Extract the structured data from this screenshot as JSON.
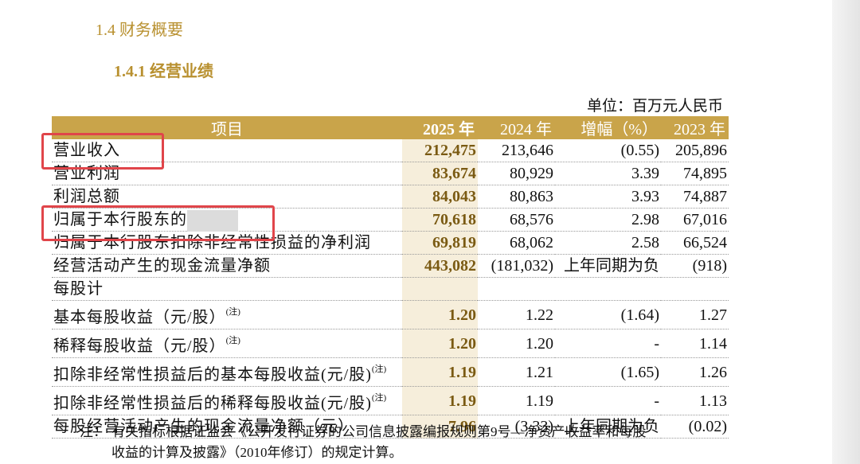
{
  "section": {
    "title": "1.4 财务概要",
    "subtitle": "1.4.1 经营业绩"
  },
  "unit": "单位：百万元人民币",
  "table": {
    "header": [
      "项目",
      "2025 年",
      "2024 年",
      "增幅（%）",
      "2023 年"
    ],
    "rows": [
      {
        "item": "营业收入",
        "values": [
          "212,475",
          "213,646",
          "(0.55)",
          "205,896"
        ]
      },
      {
        "item": "营业利润",
        "values": [
          "83,674",
          "80,929",
          "3.39",
          "74,895"
        ]
      },
      {
        "item": "利润总额",
        "values": [
          "84,043",
          "80,863",
          "3.93",
          "74,887"
        ]
      },
      {
        "item": "归属于本行股东的净利润",
        "values": [
          "70,618",
          "68,576",
          "2.98",
          "67,016"
        ]
      },
      {
        "item": "归属于本行股东扣除非经常性损益的净利润",
        "values": [
          "69,819",
          "68,062",
          "2.58",
          "66,524"
        ]
      },
      {
        "item": "经营活动产生的现金流量净额",
        "values": [
          "443,082",
          "(181,032)",
          "上年同期为负",
          "(918)"
        ]
      },
      {
        "item": "每股计",
        "values": []
      },
      {
        "item": "基本每股收益（元/股）",
        "mark": "(注)",
        "values": [
          "1.20",
          "1.22",
          "(1.64)",
          "1.27"
        ]
      },
      {
        "item": "稀释每股收益（元/股）",
        "mark": "(注)",
        "values": [
          "1.20",
          "1.20",
          "-",
          "1.14"
        ]
      },
      {
        "item": "扣除非经常性损益后的基本每股收益(元/股)",
        "mark": "(注)",
        "values": [
          "1.19",
          "1.21",
          "(1.65)",
          "1.26"
        ]
      },
      {
        "item": "扣除非经常性损益后的稀释每股收益(元/股)",
        "mark": "(注)",
        "values": [
          "1.19",
          "1.19",
          "-",
          "1.13"
        ]
      },
      {
        "item": "每股经营活动产生的现金流量净额（元）",
        "values": [
          "7.96",
          "(3.33)",
          "上年同期为负",
          "(0.02)"
        ]
      }
    ]
  },
  "note": {
    "label": "注：",
    "lines": [
      "有关指标根据证监会《公开发行证券的公司信息披露编报规则第9号—净资产收益率和每股",
      "收益的计算及披露》（2010年修订）的规定计算。"
    ]
  }
}
